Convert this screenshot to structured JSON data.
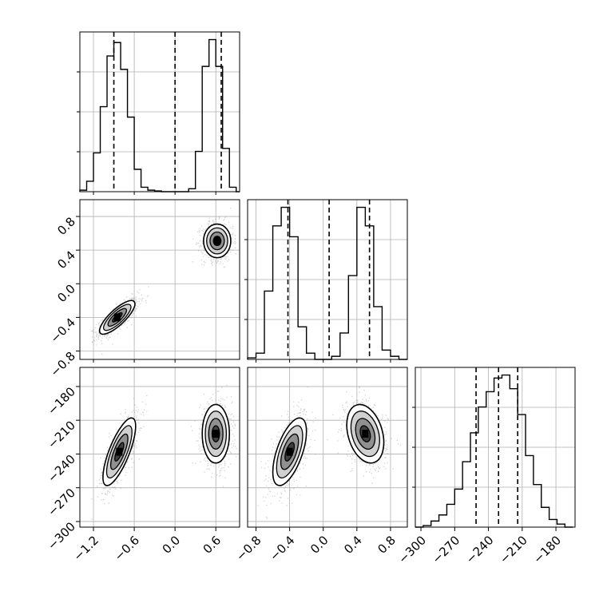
{
  "chart_data": {
    "type": "corner",
    "grid": true,
    "colors": {
      "line": "#000000",
      "grid": "#b0b0b0",
      "points": "#808080"
    },
    "params": [
      {
        "name": "",
        "range": [
          -1.4,
          0.95
        ],
        "ticks": [
          -1.2,
          -0.6,
          0.0,
          0.6
        ],
        "tick_labels": [
          "−1.2",
          "−0.6",
          "0.0",
          "0.6"
        ],
        "quantiles": [
          -0.9,
          0.0,
          0.68
        ],
        "hist": {
          "edges": [
            -1.4,
            -1.3,
            -1.2,
            -1.1,
            -1.0,
            -0.9,
            -0.8,
            -0.7,
            -0.6,
            -0.5,
            -0.4,
            -0.3,
            -0.2,
            -0.1,
            0.0,
            0.1,
            0.2,
            0.3,
            0.4,
            0.5,
            0.6,
            0.7,
            0.8,
            0.9,
            0.95
          ],
          "counts": [
            0.01,
            0.07,
            0.26,
            0.57,
            0.91,
            1.0,
            0.82,
            0.5,
            0.15,
            0.03,
            0.01,
            0.005,
            0.0,
            0.0,
            0.0,
            0.0,
            0.02,
            0.27,
            0.84,
            1.02,
            0.84,
            0.29,
            0.03,
            0.0
          ]
        }
      },
      {
        "name": "",
        "range": [
          -0.9,
          1.0
        ],
        "ticks": [
          -0.8,
          -0.4,
          0.0,
          0.4,
          0.8
        ],
        "tick_labels": [
          "−0.8",
          "−0.4",
          "0.0",
          "0.4",
          "0.8"
        ],
        "quantiles": [
          -0.42,
          0.07,
          0.55
        ],
        "hist": {
          "edges": [
            -0.9,
            -0.8,
            -0.7,
            -0.6,
            -0.5,
            -0.4,
            -0.3,
            -0.2,
            -0.1,
            0.0,
            0.1,
            0.2,
            0.3,
            0.4,
            0.5,
            0.6,
            0.7,
            0.8,
            0.9,
            1.0
          ],
          "counts": [
            0.01,
            0.04,
            0.44,
            0.86,
            0.98,
            0.79,
            0.21,
            0.04,
            0.0,
            0.0,
            0.02,
            0.17,
            0.54,
            0.98,
            0.86,
            0.34,
            0.06,
            0.02,
            0.0
          ]
        }
      },
      {
        "name": "",
        "range": [
          -305,
          -163
        ],
        "ticks": [
          -300,
          -270,
          -240,
          -210,
          -180
        ],
        "tick_labels": [
          "−300",
          "−270",
          "−240",
          "−210",
          "−180"
        ],
        "quantiles": [
          -251,
          -231,
          -214
        ],
        "hist": {
          "edges": [
            -305,
            -298,
            -291,
            -284,
            -277,
            -270,
            -263,
            -256,
            -249,
            -242,
            -235,
            -228,
            -221,
            -214,
            -207,
            -200,
            -193,
            -186,
            -179,
            -172,
            -165
          ],
          "counts": [
            0.0,
            0.01,
            0.04,
            0.08,
            0.15,
            0.25,
            0.43,
            0.62,
            0.79,
            0.89,
            0.98,
            1.0,
            0.91,
            0.74,
            0.47,
            0.28,
            0.13,
            0.05,
            0.02,
            0.0
          ]
        }
      }
    ],
    "pairs": [
      {
        "x": 0,
        "y": 1,
        "clusters": [
          {
            "cx": -0.85,
            "cy": -0.4,
            "sx": 0.13,
            "sy": 0.1,
            "rho": 0.8
          },
          {
            "cx": 0.62,
            "cy": 0.51,
            "sx": 0.1,
            "sy": 0.1,
            "rho": 0.0
          }
        ]
      },
      {
        "x": 0,
        "y": 2,
        "clusters": [
          {
            "cx": -0.82,
            "cy": -238,
            "sx": 0.12,
            "sy": 15,
            "rho": 0.75
          },
          {
            "cx": 0.6,
            "cy": -222,
            "sx": 0.1,
            "sy": 13,
            "rho": 0.0
          }
        ]
      },
      {
        "x": 1,
        "y": 2,
        "clusters": [
          {
            "cx": -0.4,
            "cy": -238,
            "sx": 0.1,
            "sy": 15,
            "rho": 0.6
          },
          {
            "cx": 0.5,
            "cy": -222,
            "sx": 0.11,
            "sy": 13,
            "rho": -0.3
          }
        ]
      }
    ]
  }
}
